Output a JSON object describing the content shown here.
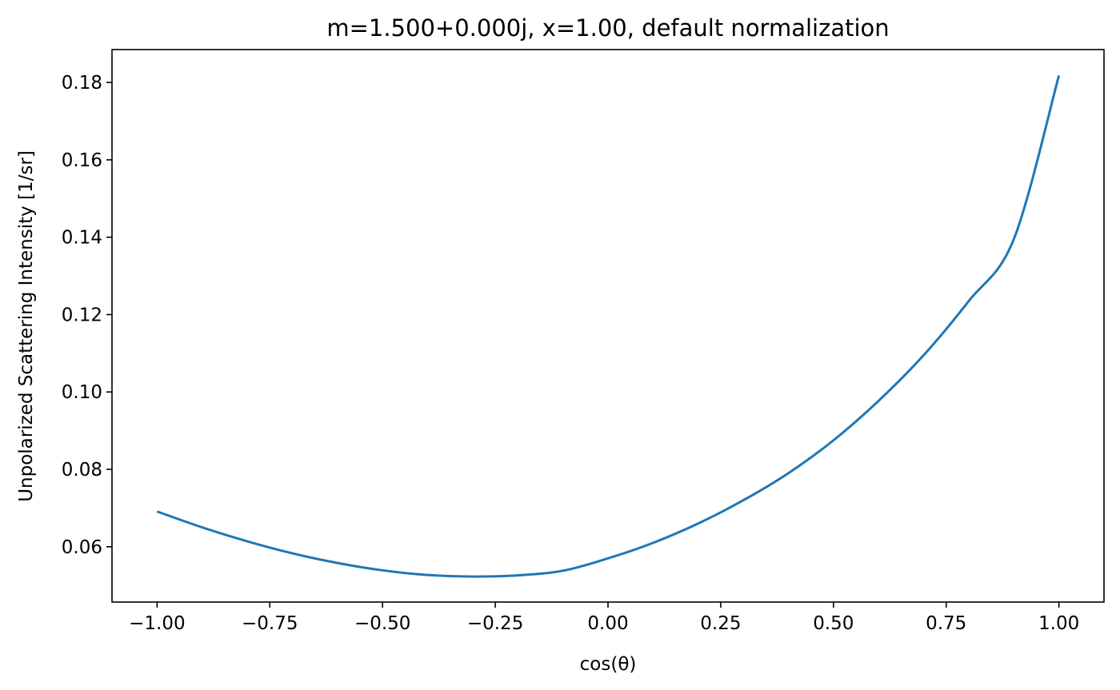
{
  "chart_data": {
    "type": "line",
    "title": "m=1.500+0.000j, x=1.00, default normalization",
    "xlabel": "cos(θ)",
    "ylabel": "Unpolarized Scattering Intensity [1/sr]",
    "xlim": [
      -1.1,
      1.1
    ],
    "ylim": [
      0.0457,
      0.1885
    ],
    "xticks": [
      -1.0,
      -0.75,
      -0.5,
      -0.25,
      0.0,
      0.25,
      0.5,
      0.75,
      1.0
    ],
    "xtick_labels": [
      "−1.00",
      "−0.75",
      "−0.50",
      "−0.25",
      "0.00",
      "0.25",
      "0.50",
      "0.75",
      "1.00"
    ],
    "yticks": [
      0.06,
      0.08,
      0.1,
      0.12,
      0.14,
      0.16,
      0.18
    ],
    "ytick_labels": [
      "0.06",
      "0.08",
      "0.10",
      "0.12",
      "0.14",
      "0.16",
      "0.18"
    ],
    "grid": false,
    "colors": {
      "line": "#1f77b4",
      "axes": "#000000",
      "background": "#ffffff"
    },
    "series": [
      {
        "x": [
          -1.0,
          -0.9,
          -0.8,
          -0.7,
          -0.6,
          -0.5,
          -0.4,
          -0.3,
          -0.2,
          -0.1,
          0.0,
          0.1,
          0.2,
          0.3,
          0.4,
          0.5,
          0.6,
          0.7,
          0.8,
          0.9,
          1.0
        ],
        "y": [
          0.0691,
          0.065,
          0.0614,
          0.0583,
          0.0558,
          0.0539,
          0.0527,
          0.0523,
          0.0526,
          0.0538,
          0.057,
          0.061,
          0.066,
          0.072,
          0.079,
          0.0875,
          0.0977,
          0.1095,
          0.1235,
          0.1395,
          0.1818
        ]
      }
    ]
  }
}
